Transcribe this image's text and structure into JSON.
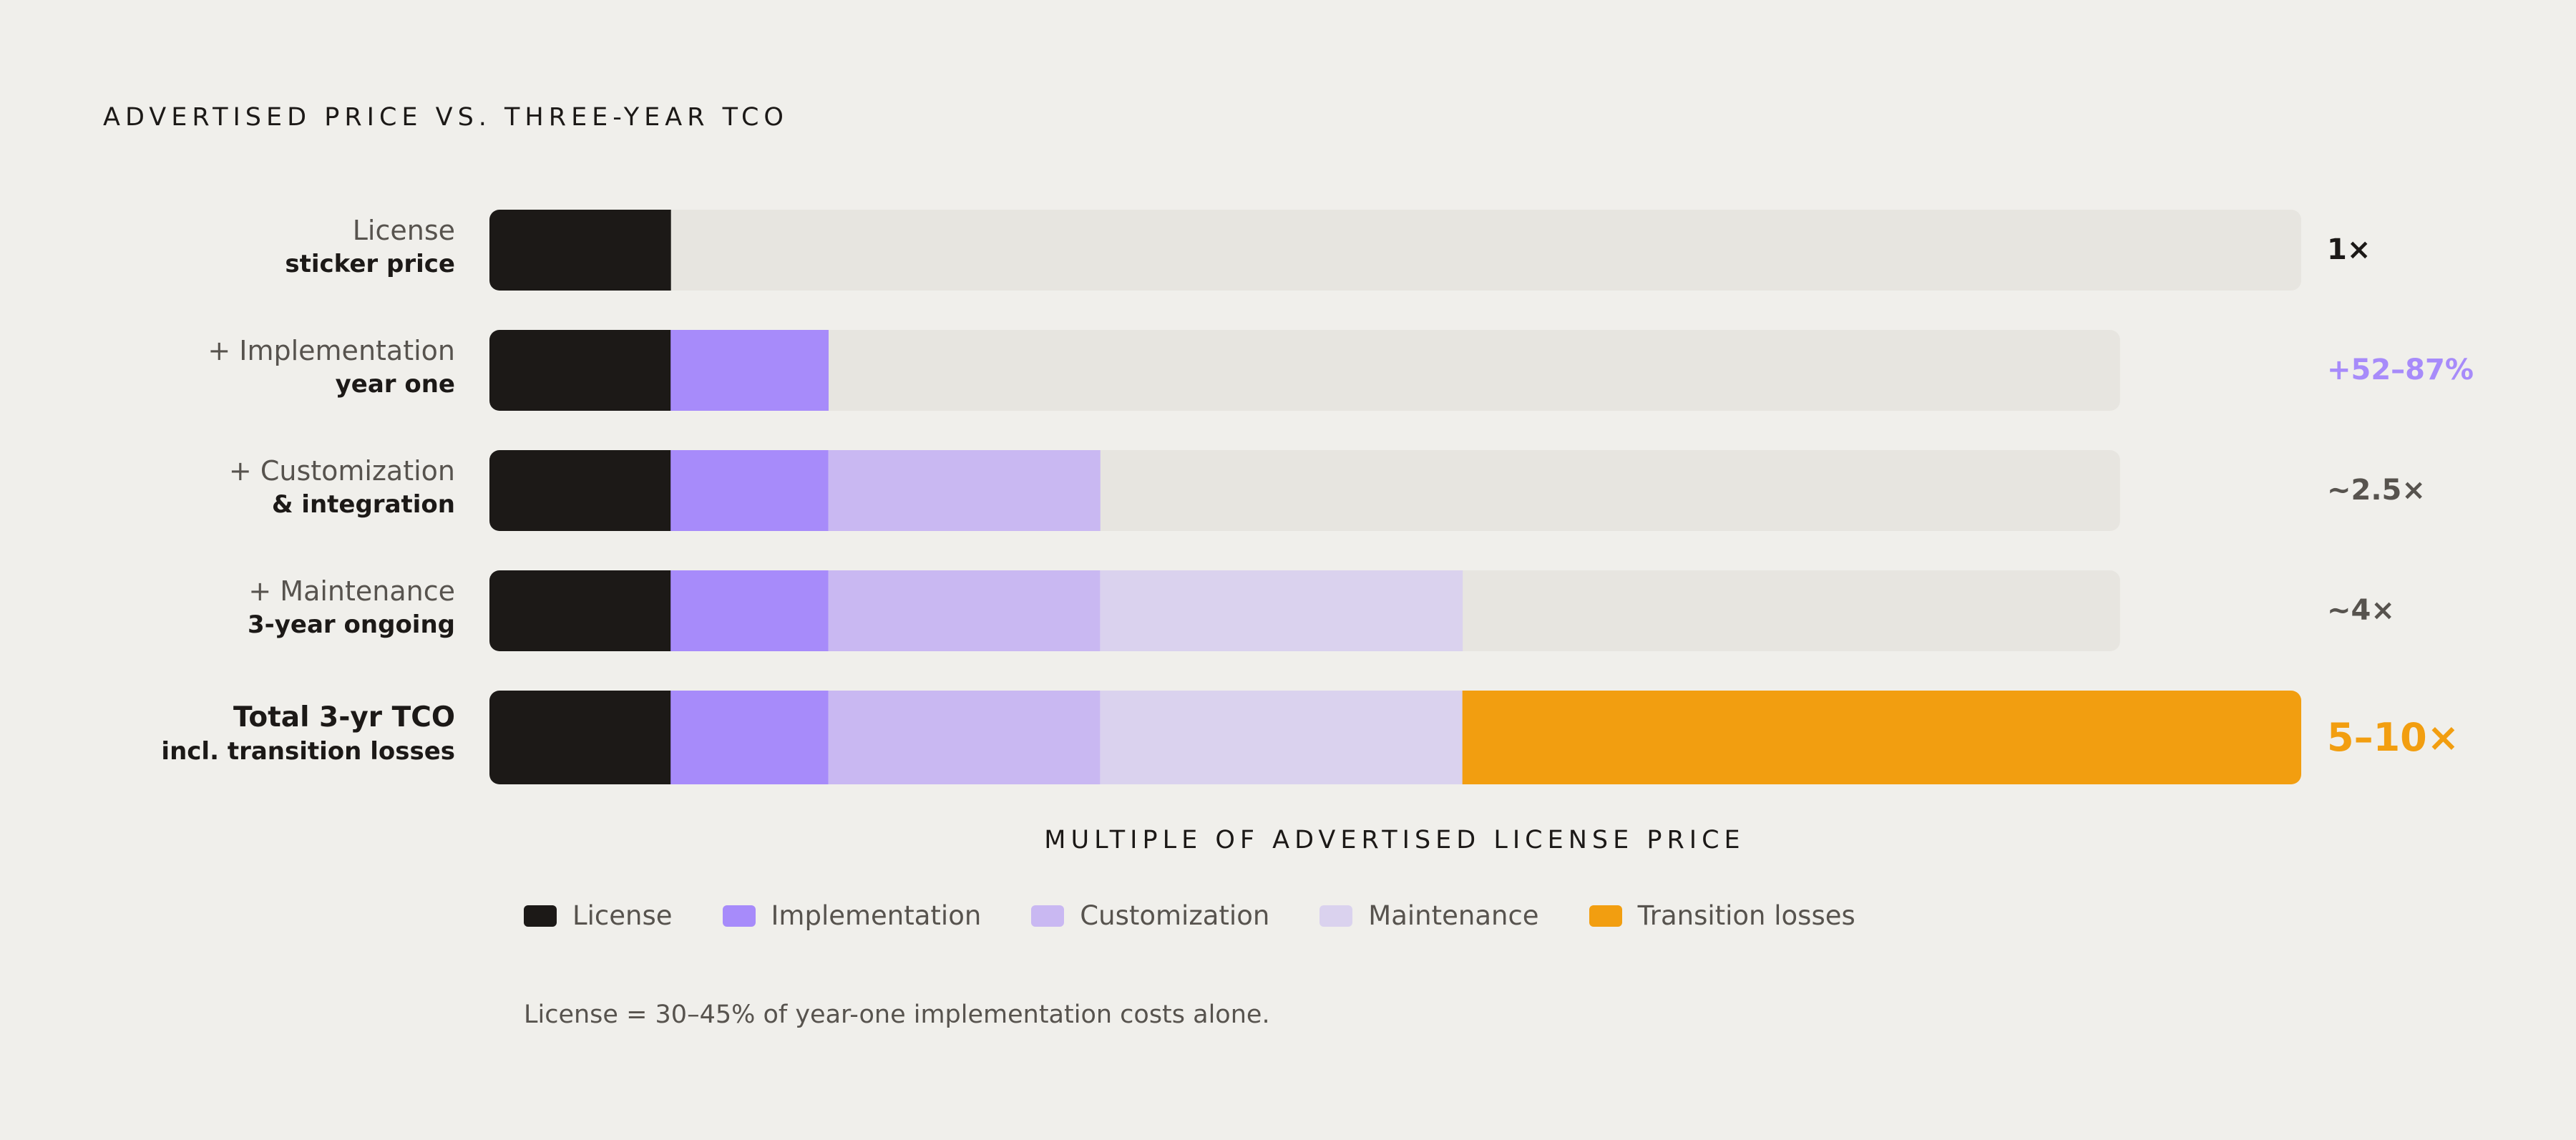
{
  "title": "ADVERTISED PRICE VS. THREE-YEAR TCO",
  "axis_label": "MULTIPLE OF ADVERTISED LICENSE PRICE",
  "footnote": "License = 30–45% of year-one implementation costs alone.",
  "colors": {
    "background": "#f0efeb",
    "track": "#e7e5e0",
    "license": "#1c1917",
    "implementation": "#a78bfa",
    "customization": "#c9b8f2",
    "maintenance": "#dad2ee",
    "transition": "#f29e10",
    "accent_purple": "#a78bfa",
    "gray_text": "#57534e"
  },
  "legend": [
    {
      "label": "License",
      "color": "#1c1917"
    },
    {
      "label": "Implementation",
      "color": "#a78bfa"
    },
    {
      "label": "Customization",
      "color": "#c9b8f2"
    },
    {
      "label": "Maintenance",
      "color": "#dad2ee"
    },
    {
      "label": "Transition losses",
      "color": "#f29e10"
    }
  ],
  "rows": [
    {
      "label": "License",
      "sublabel": "sticker price",
      "multiplier": "1×",
      "multiplier_color": "#1c1917"
    },
    {
      "label": "+ Implementation",
      "sublabel": "year one",
      "multiplier": "+52–87%",
      "multiplier_color": "#a78bfa"
    },
    {
      "label": "+ Customization",
      "sublabel": "& integration",
      "multiplier": "~2.5×",
      "multiplier_color": "#57534e"
    },
    {
      "label": "+ Maintenance",
      "sublabel": "3-year ongoing",
      "multiplier": "~4×",
      "multiplier_color": "#57534e"
    },
    {
      "label": "Total 3-yr TCO",
      "sublabel": "incl. transition losses",
      "multiplier": "5–10×",
      "multiplier_color": "#f29e10"
    }
  ],
  "chart_data": {
    "type": "bar",
    "orientation": "horizontal",
    "stacked": true,
    "title": "ADVERTISED PRICE VS. THREE-YEAR TCO",
    "xlabel": "MULTIPLE OF ADVERTISED LICENSE PRICE",
    "ylabel": "",
    "categories": [
      "License sticker price",
      "+ Implementation year one",
      "+ Customization & integration",
      "+ Maintenance 3-year ongoing",
      "Total 3-yr TCO incl. transition losses"
    ],
    "xlim": [
      0,
      10
    ],
    "track_max": [
      10,
      9,
      9,
      9,
      10
    ],
    "series": [
      {
        "name": "License",
        "color": "#1c1917",
        "values": [
          1,
          1,
          1,
          1,
          1
        ]
      },
      {
        "name": "Implementation",
        "color": "#a78bfa",
        "values": [
          0,
          0.87,
          0.87,
          0.87,
          0.87
        ]
      },
      {
        "name": "Customization",
        "color": "#c9b8f2",
        "values": [
          0,
          0,
          1.5,
          1.5,
          1.5
        ]
      },
      {
        "name": "Maintenance",
        "color": "#dad2ee",
        "values": [
          0,
          0,
          0,
          2,
          2
        ]
      },
      {
        "name": "Transition losses",
        "color": "#f29e10",
        "values": [
          0,
          0,
          0,
          0,
          4.63
        ]
      }
    ],
    "annotations": [
      "1×",
      "+52–87%",
      "~2.5×",
      "~4×",
      "5–10×"
    ],
    "legend_position": "bottom",
    "grid": false
  }
}
